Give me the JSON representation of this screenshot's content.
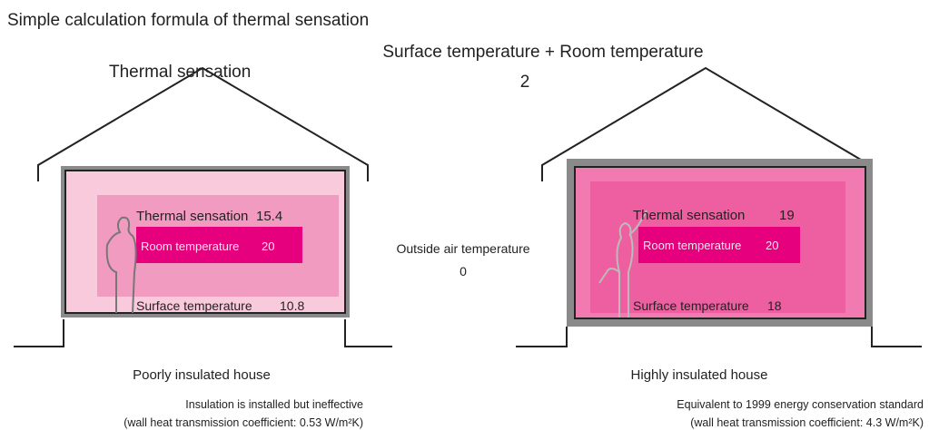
{
  "title": "Simple calculation formula of thermal sensation",
  "formula": {
    "lhs": "Thermal sensation",
    "numerator": "Surface temperature + Room temperature",
    "denominator": "2"
  },
  "outside": {
    "label": "Outside air temperature",
    "value": "0"
  },
  "houses": [
    {
      "thermal_label": "Thermal sensation",
      "thermal_value": "15.4",
      "room_label": "Room temperature",
      "room_value": "20",
      "surface_label": "Surface temperature",
      "surface_value": "10.8",
      "caption": "Poorly insulated house",
      "notes": [
        "Insulation is installed but ineffective",
        "(wall heat transmission coefficient: 0.53 W/m²K)"
      ]
    },
    {
      "thermal_label": "Thermal sensation",
      "thermal_value": "19",
      "room_label": "Room temperature",
      "room_value": "20",
      "surface_label": "Surface temperature",
      "surface_value": "18",
      "caption": "Highly insulated house",
      "notes": [
        "Equivalent to 1999 energy conservation standard",
        "(wall heat transmission coefficient: 4.3 W/m²K)"
      ]
    }
  ]
}
